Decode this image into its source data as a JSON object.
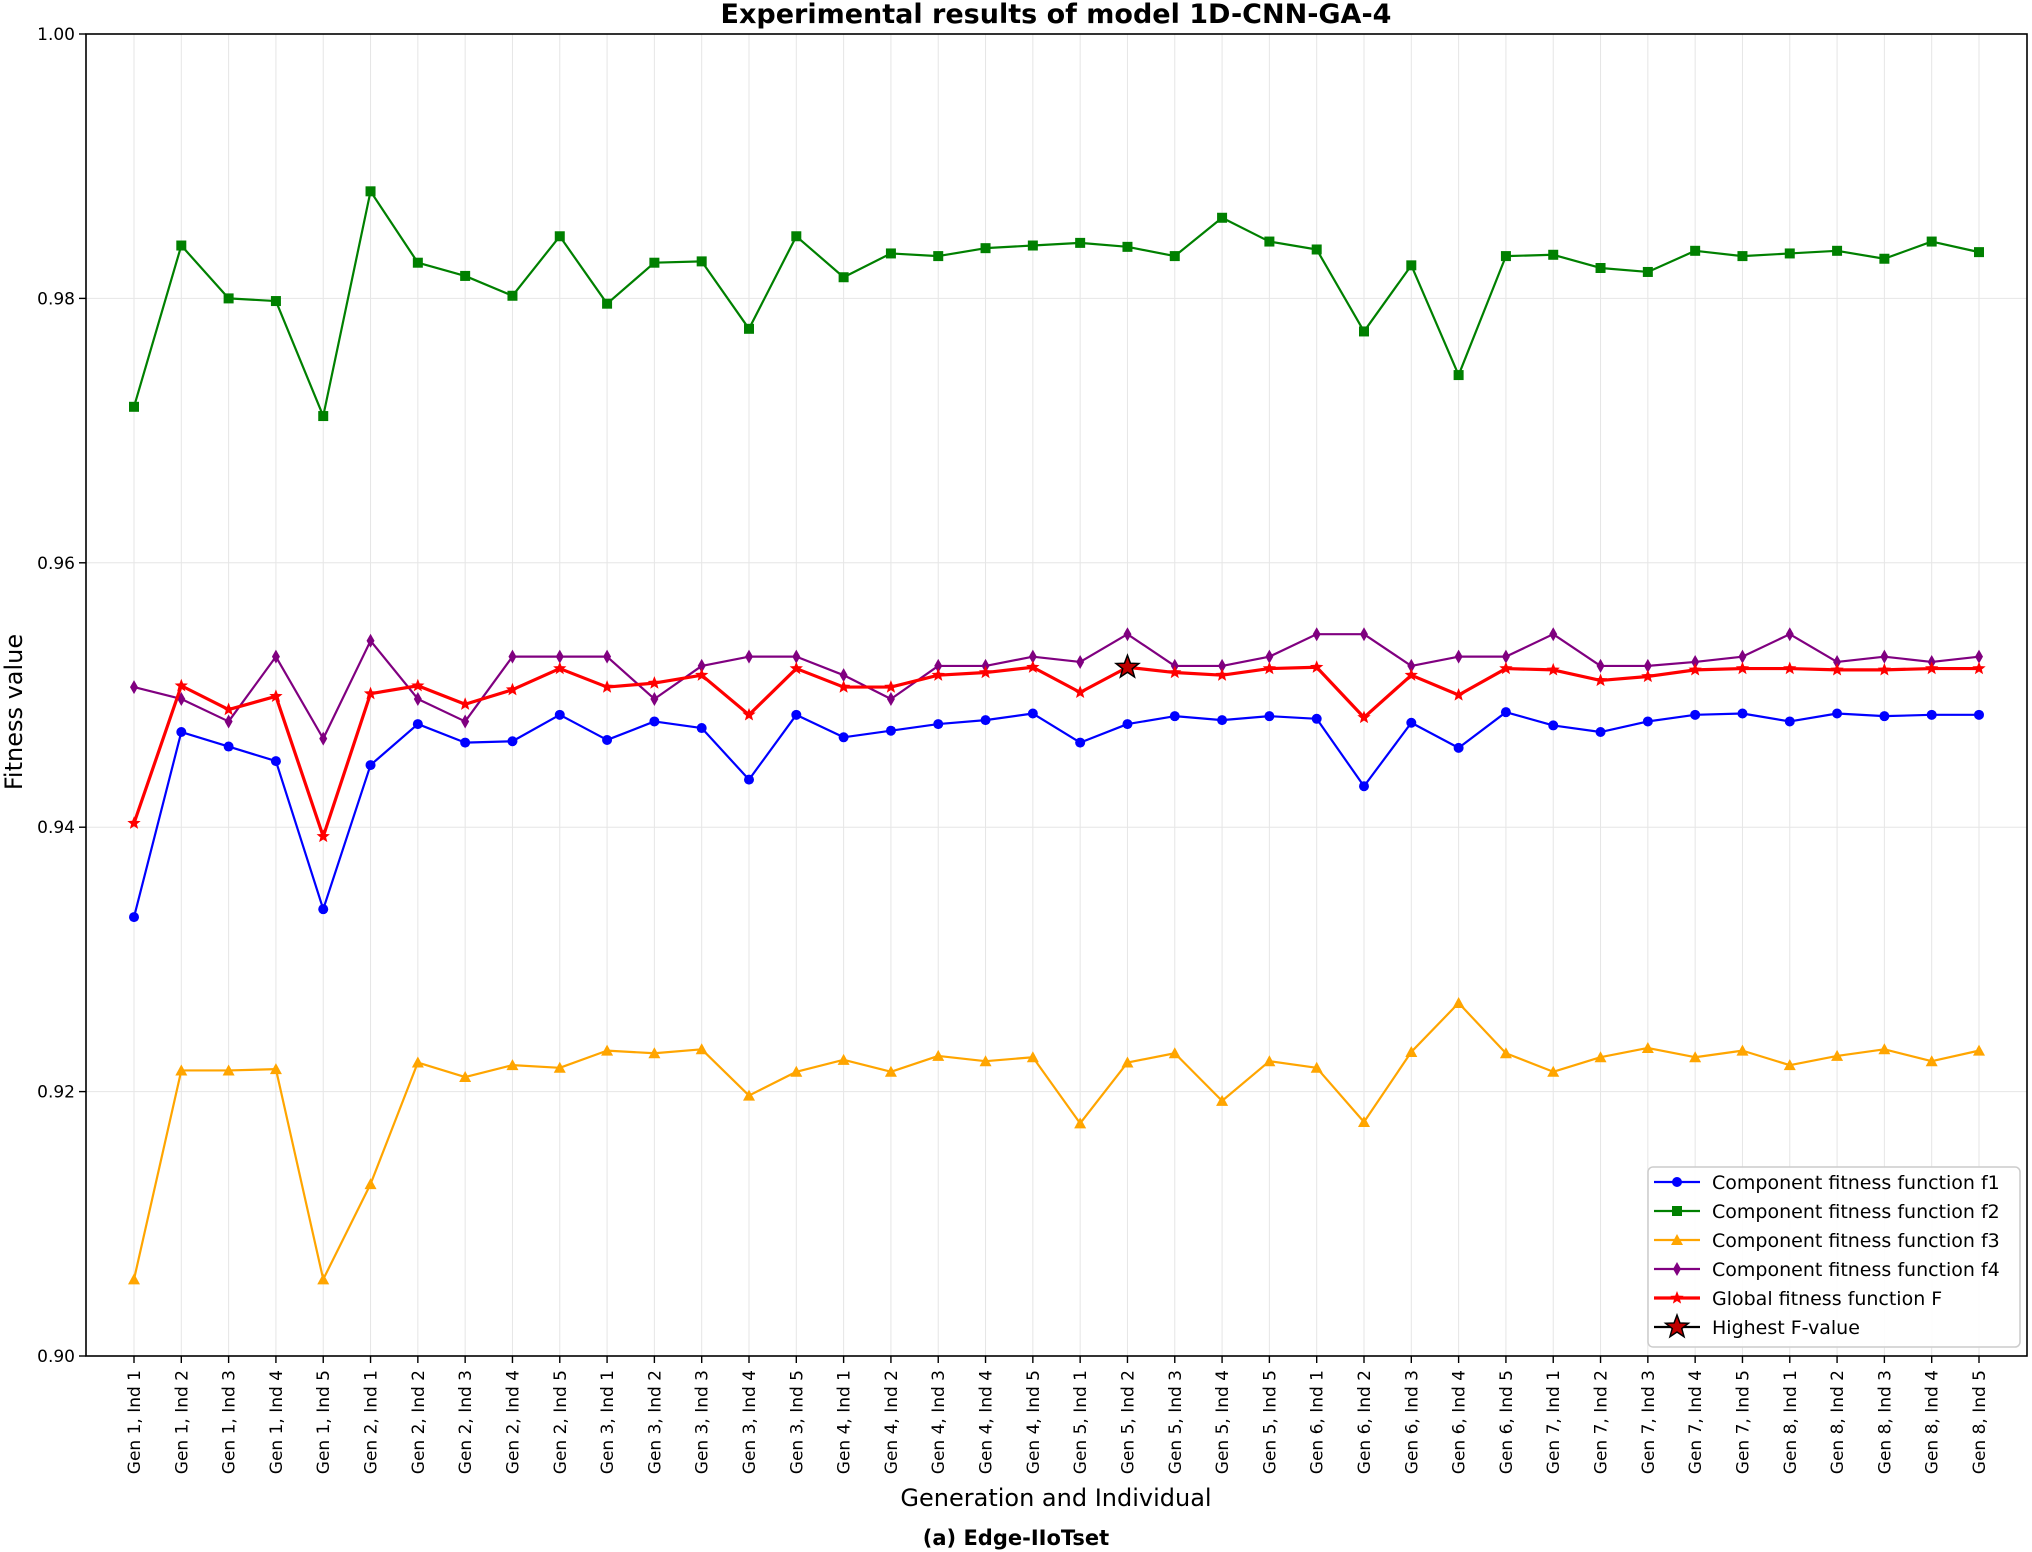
{
  "chart_data": {
    "type": "line",
    "title": "Experimental results of model 1D-CNN-GA-4",
    "xlabel": "Generation and Individual",
    "ylabel": "Fitness value",
    "caption": "(a) Edge-IIoTset",
    "ylim": [
      0.9,
      1.0
    ],
    "yticks": [
      "0.90",
      "0.92",
      "0.94",
      "0.96",
      "0.98",
      "1.00"
    ],
    "grid": true,
    "legend_position": "lower-right",
    "categories": [
      "Gen 1, Ind 1",
      "Gen 1, Ind 2",
      "Gen 1, Ind 3",
      "Gen 1, Ind 4",
      "Gen 1, Ind 5",
      "Gen 2, Ind 1",
      "Gen 2, Ind 2",
      "Gen 2, Ind 3",
      "Gen 2, Ind 4",
      "Gen 2, Ind 5",
      "Gen 3, Ind 1",
      "Gen 3, Ind 2",
      "Gen 3, Ind 3",
      "Gen 3, Ind 4",
      "Gen 3, Ind 5",
      "Gen 4, Ind 1",
      "Gen 4, Ind 2",
      "Gen 4, Ind 3",
      "Gen 4, Ind 4",
      "Gen 4, Ind 5",
      "Gen 5, Ind 1",
      "Gen 5, Ind 2",
      "Gen 5, Ind 3",
      "Gen 5, Ind 4",
      "Gen 5, Ind 5",
      "Gen 6, Ind 1",
      "Gen 6, Ind 2",
      "Gen 6, Ind 3",
      "Gen 6, Ind 4",
      "Gen 6, Ind 5",
      "Gen 7, Ind 1",
      "Gen 7, Ind 2",
      "Gen 7, Ind 3",
      "Gen 7, Ind 4",
      "Gen 7, Ind 5",
      "Gen 8, Ind 1",
      "Gen 8, Ind 2",
      "Gen 8, Ind 3",
      "Gen 8, Ind 4",
      "Gen 8, Ind 5"
    ],
    "series": [
      {
        "name": "Component fitness function f1",
        "color": "#0000ff",
        "marker": "circle",
        "values": [
          0.9332,
          0.9472,
          0.9461,
          0.945,
          0.9338,
          0.9447,
          0.9478,
          0.9464,
          0.9465,
          0.9485,
          0.9466,
          0.948,
          0.9475,
          0.9436,
          0.9485,
          0.9468,
          0.9473,
          0.9478,
          0.9481,
          0.9486,
          0.9464,
          0.9478,
          0.9484,
          0.9481,
          0.9484,
          0.9482,
          0.9431,
          0.9479,
          0.946,
          0.9487,
          0.9477,
          0.9472,
          0.948,
          0.9485,
          0.9486,
          0.948,
          0.9486,
          0.9484,
          0.9485,
          0.9485
        ]
      },
      {
        "name": "Component fitness function f2",
        "color": "#008000",
        "marker": "square",
        "values": [
          0.9718,
          0.984,
          0.98,
          0.9798,
          0.9711,
          0.9881,
          0.9827,
          0.9817,
          0.9802,
          0.9847,
          0.9796,
          0.9827,
          0.9828,
          0.9777,
          0.9847,
          0.9816,
          0.9834,
          0.9832,
          0.9838,
          0.984,
          0.9842,
          0.9839,
          0.9832,
          0.9861,
          0.9843,
          0.9837,
          0.9775,
          0.9825,
          0.9742,
          0.9832,
          0.9833,
          0.9823,
          0.982,
          0.9836,
          0.9832,
          0.9834,
          0.9836,
          0.983,
          0.9843,
          0.9835
        ]
      },
      {
        "name": "Component fitness function f3",
        "color": "#ffa500",
        "marker": "triangle",
        "values": [
          0.9058,
          0.9216,
          0.9216,
          0.9217,
          0.9058,
          0.913,
          0.9222,
          0.9211,
          0.922,
          0.9218,
          0.9231,
          0.9229,
          0.9232,
          0.9197,
          0.9215,
          0.9224,
          0.9215,
          0.9227,
          0.9223,
          0.9226,
          0.9176,
          0.9222,
          0.9229,
          0.9193,
          0.9223,
          0.9218,
          0.9177,
          0.923,
          0.9267,
          0.9229,
          0.9215,
          0.9226,
          0.9233,
          0.9226,
          0.9231,
          0.922,
          0.9227,
          0.9232,
          0.9223,
          0.9231
        ]
      },
      {
        "name": "Component fitness function f4",
        "color": "#800080",
        "marker": "diamond",
        "values": [
          0.9506,
          0.9497,
          0.948,
          0.9529,
          0.9467,
          0.9541,
          0.9497,
          0.948,
          0.9529,
          0.9529,
          0.9529,
          0.9497,
          0.9522,
          0.9529,
          0.9529,
          0.9515,
          0.9497,
          0.9522,
          0.9522,
          0.9529,
          0.9525,
          0.9546,
          0.9522,
          0.9522,
          0.9529,
          0.9546,
          0.9546,
          0.9522,
          0.9529,
          0.9529,
          0.9546,
          0.9522,
          0.9522,
          0.9525,
          0.9529,
          0.9546,
          0.9525,
          0.9529,
          0.9525,
          0.9529
        ]
      },
      {
        "name": "Global fitness function F",
        "color": "#ff0000",
        "marker": "star",
        "values": [
          0.9403,
          0.9507,
          0.9489,
          0.9499,
          0.9393,
          0.9501,
          0.9507,
          0.9493,
          0.9504,
          0.952,
          0.9506,
          0.9509,
          0.9515,
          0.9485,
          0.952,
          0.9506,
          0.9506,
          0.9515,
          0.9517,
          0.9521,
          0.9502,
          0.9521,
          0.9517,
          0.9515,
          0.952,
          0.9521,
          0.9483,
          0.9515,
          0.95,
          0.952,
          0.9519,
          0.9511,
          0.9514,
          0.9519,
          0.952,
          0.952,
          0.9519,
          0.9519,
          0.952,
          0.952
        ]
      }
    ],
    "highlight": {
      "name": "Highest F-value",
      "category": "Gen 5, Ind 2",
      "value": 0.9521,
      "color": "#000000",
      "marker": "big-star"
    }
  }
}
